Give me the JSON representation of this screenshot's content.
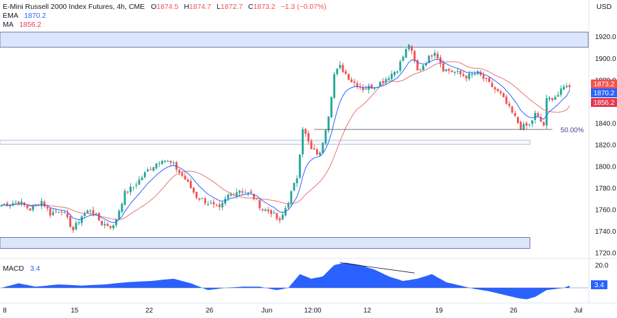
{
  "header": {
    "instrument": "E-Mini Russell 2000 Index Futures, 4h, CME",
    "ohlc": [
      {
        "k": "O",
        "v": "1874.5"
      },
      {
        "k": "H",
        "v": "1874.7"
      },
      {
        "k": "L",
        "v": "1872.7"
      },
      {
        "k": "C",
        "v": "1873.2"
      }
    ],
    "change": "−1.3 (−0.07%)",
    "currency": "USD",
    "ema_label": "EMA",
    "ema_value": "1870.2",
    "ma_label": "MA",
    "ma_value": "1856.2",
    "macd_label": "MACD",
    "macd_value": "3.4"
  },
  "colors": {
    "up": "#26a69a",
    "down": "#ef5350",
    "ema": "#2962ff",
    "ma": "#e57373",
    "macd": "#2962ff",
    "zone_fill": "#dbe6fd",
    "zone_stroke": "#4a5a86",
    "close_badge": "#ef5350",
    "ema_badge": "#2962ff",
    "ma_badge": "#e53950"
  },
  "chart_data": {
    "type": "candlestick",
    "price_ylim": [
      1716,
      1936
    ],
    "price_ticks": [
      "1920.0",
      "1900.0",
      "1880.0",
      "1860.0",
      "1840.0",
      "1820.0",
      "1800.0",
      "1780.0",
      "1760.0",
      "1740.0",
      "1720.0"
    ],
    "x_ticks": [
      "8",
      "15",
      "22",
      "26",
      "Jun",
      "12:00",
      "12",
      "19",
      "26",
      "Jul"
    ],
    "x_tick_bars": [
      0.5,
      25.5,
      51.5,
      72.5,
      92.5,
      108.5,
      127.5,
      152.5,
      178.5,
      201
    ],
    "total_bars": 205,
    "waypoints": [
      [
        0,
        1764
      ],
      [
        6,
        1767
      ],
      [
        10,
        1760
      ],
      [
        14,
        1768
      ],
      [
        17,
        1756
      ],
      [
        21,
        1760
      ],
      [
        25,
        1741
      ],
      [
        28,
        1754
      ],
      [
        31,
        1760
      ],
      [
        35,
        1747
      ],
      [
        39,
        1744
      ],
      [
        43,
        1775
      ],
      [
        46,
        1781
      ],
      [
        51,
        1796
      ],
      [
        56,
        1807
      ],
      [
        60,
        1801
      ],
      [
        64,
        1788
      ],
      [
        68,
        1772
      ],
      [
        72,
        1766
      ],
      [
        76,
        1760
      ],
      [
        79,
        1773
      ],
      [
        83,
        1778
      ],
      [
        87,
        1774
      ],
      [
        91,
        1760
      ],
      [
        94,
        1758
      ],
      [
        97,
        1748
      ],
      [
        100,
        1768
      ],
      [
        103,
        1790
      ],
      [
        105,
        1836
      ],
      [
        108,
        1815
      ],
      [
        111,
        1811
      ],
      [
        114,
        1848
      ],
      [
        116,
        1885
      ],
      [
        118,
        1892
      ],
      [
        122,
        1879
      ],
      [
        126,
        1872
      ],
      [
        130,
        1874
      ],
      [
        134,
        1881
      ],
      [
        138,
        1890
      ],
      [
        142,
        1913
      ],
      [
        145,
        1888
      ],
      [
        148,
        1897
      ],
      [
        151,
        1907
      ],
      [
        154,
        1890
      ],
      [
        158,
        1887
      ],
      [
        162,
        1883
      ],
      [
        166,
        1886
      ],
      [
        170,
        1876
      ],
      [
        174,
        1866
      ],
      [
        178,
        1849
      ],
      [
        181,
        1836
      ],
      [
        184,
        1838
      ],
      [
        186,
        1848
      ],
      [
        189,
        1838
      ],
      [
        190,
        1861
      ],
      [
        194,
        1866
      ],
      [
        197,
        1876
      ],
      [
        199,
        1873
      ]
    ],
    "last": {
      "close": 1873.2,
      "ema": 1870.2,
      "ma": 1856.2
    },
    "zones": [
      {
        "low": 1910,
        "high": 1924
      },
      {
        "low": 1821,
        "high": 1824
      },
      {
        "low": 1724,
        "high": 1734
      }
    ],
    "fib_line": {
      "level": 1834,
      "start_bar": 109,
      "end_bar": 192,
      "label": "50.00%"
    },
    "macd": {
      "ylim": [
        -12,
        24
      ],
      "ticks": [
        "20.0"
      ],
      "zero_line": true,
      "waypoints": [
        [
          0,
          0
        ],
        [
          6,
          4
        ],
        [
          12,
          1
        ],
        [
          20,
          3
        ],
        [
          28,
          2
        ],
        [
          36,
          3
        ],
        [
          44,
          5
        ],
        [
          52,
          6
        ],
        [
          60,
          8
        ],
        [
          66,
          4
        ],
        [
          72,
          -2
        ],
        [
          78,
          0
        ],
        [
          84,
          1
        ],
        [
          90,
          1
        ],
        [
          96,
          -2
        ],
        [
          100,
          0
        ],
        [
          104,
          12
        ],
        [
          108,
          8
        ],
        [
          112,
          10
        ],
        [
          116,
          20
        ],
        [
          120,
          22
        ],
        [
          125,
          20
        ],
        [
          130,
          16
        ],
        [
          135,
          10
        ],
        [
          140,
          6
        ],
        [
          145,
          8
        ],
        [
          150,
          12
        ],
        [
          155,
          5
        ],
        [
          160,
          2
        ],
        [
          165,
          -1
        ],
        [
          170,
          -3
        ],
        [
          175,
          -6
        ],
        [
          180,
          -9
        ],
        [
          183,
          -10
        ],
        [
          186,
          -8
        ],
        [
          190,
          -2
        ],
        [
          196,
          0
        ],
        [
          199,
          3
        ]
      ],
      "divergence_line": {
        "start": [
          118,
          22
        ],
        "end": [
          144,
          13
        ]
      }
    }
  }
}
